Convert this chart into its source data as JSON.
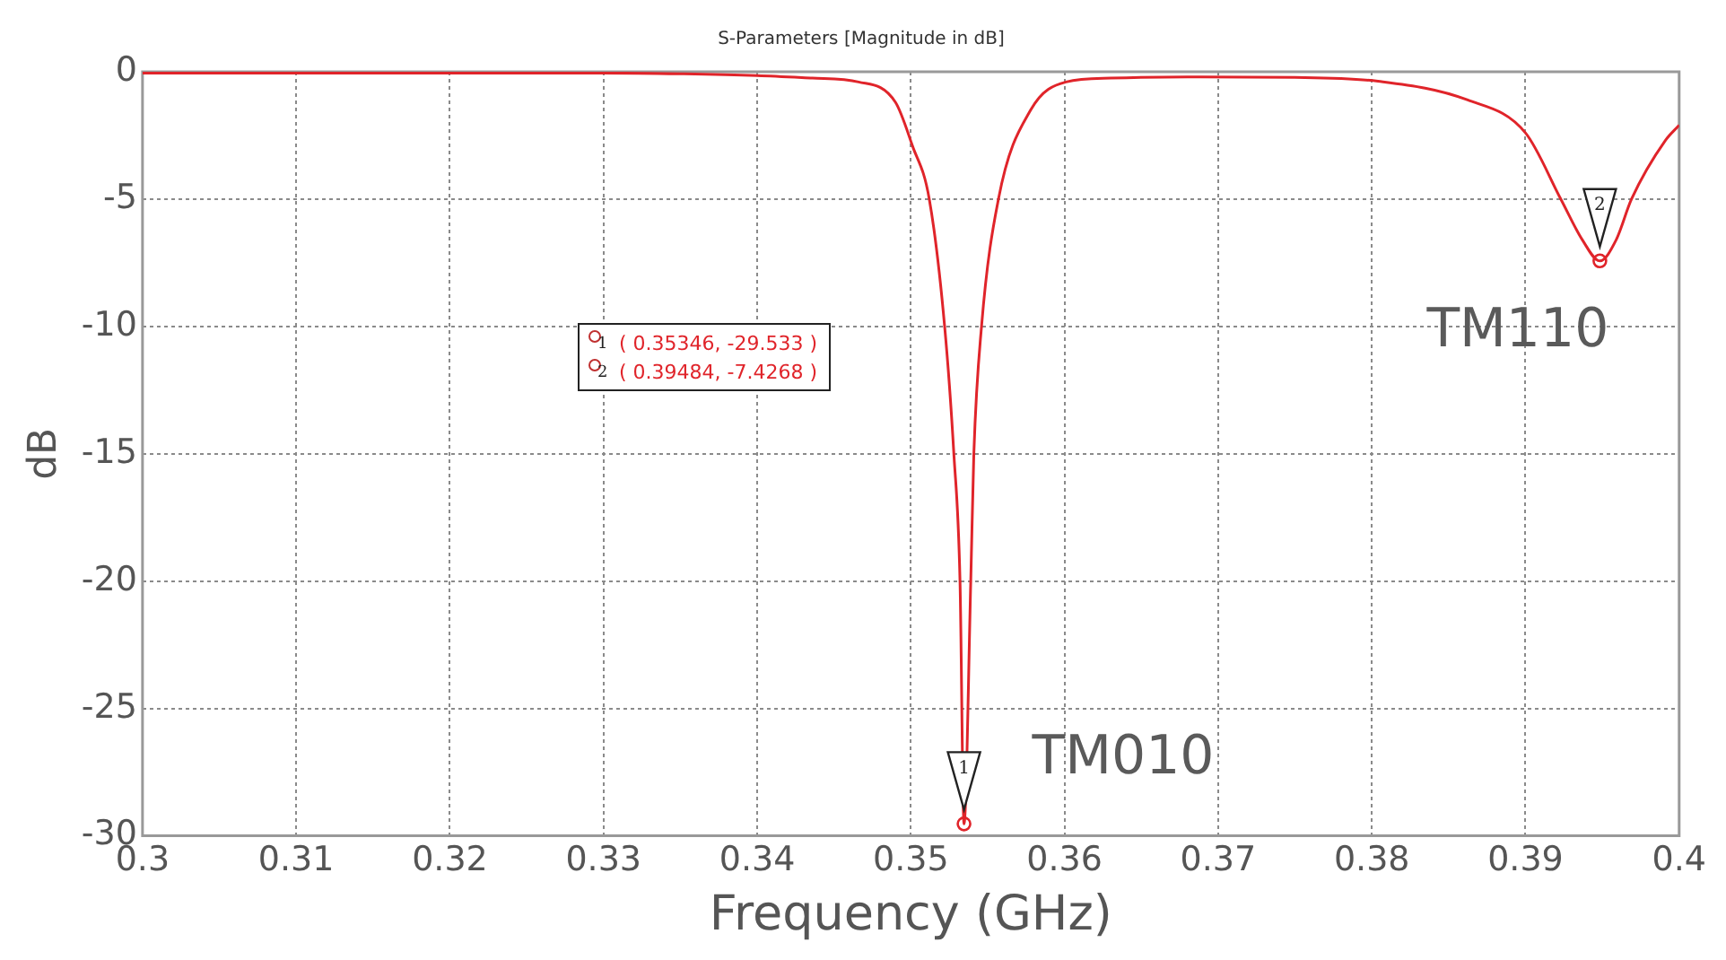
{
  "chart_data": {
    "type": "line",
    "title": "S-Parameters [Magnitude in dB]",
    "xlabel": "Frequency (GHz)",
    "ylabel": "dB",
    "xlim": [
      0.3,
      0.4
    ],
    "xticks": [
      0.3,
      0.31,
      0.32,
      0.33,
      0.34,
      0.35,
      0.36,
      0.37,
      0.38,
      0.39,
      0.4
    ],
    "ylim": [
      -30,
      0
    ],
    "yticks": [
      -30,
      -25,
      -20,
      -15,
      -10,
      -5,
      0
    ],
    "grid": true,
    "legend": false,
    "marker": "none",
    "line_style": "solid",
    "series": [
      {
        "color": "#e0242a",
        "x": [
          0.3,
          0.31,
          0.32,
          0.33,
          0.335,
          0.34,
          0.3436,
          0.3466,
          0.349,
          0.3501,
          0.3512,
          0.3522,
          0.3528,
          0.3532,
          0.35346,
          0.3539,
          0.3541,
          0.3546,
          0.3557,
          0.3578,
          0.3601,
          0.363,
          0.368,
          0.375,
          0.3804,
          0.3862,
          0.39,
          0.3923,
          0.3937,
          0.39484,
          0.3959,
          0.3969,
          0.3991,
          0.4
        ],
        "values": [
          -0.05,
          -0.05,
          -0.05,
          -0.05,
          -0.08,
          -0.15,
          -0.25,
          -0.4,
          -1.2,
          -2.9,
          -5,
          -10,
          -15,
          -20,
          -29.533,
          -20,
          -15,
          -10,
          -5,
          -1.5,
          -0.4,
          -0.25,
          -0.2,
          -0.22,
          -0.37,
          -1.1,
          -2.4,
          -5,
          -6.6,
          -7.4268,
          -6.6,
          -5,
          -2.7,
          -2.1
        ]
      },
      {
        "type": "scatter",
        "color": "#e0242a",
        "marker": "circle",
        "x": [
          0.35346,
          0.39484
        ],
        "values": [
          -29.533,
          -7.4268
        ]
      }
    ],
    "annotations": [
      "1",
      "2",
      "( 0.35346, -29.533 )",
      "( 0.39484, -7.4268 )",
      {
        "text": "TM010",
        "x": 0.35346,
        "y": -29.533
      },
      {
        "text": "TM110",
        "x": 0.39484,
        "y": -7.4268
      }
    ]
  }
}
